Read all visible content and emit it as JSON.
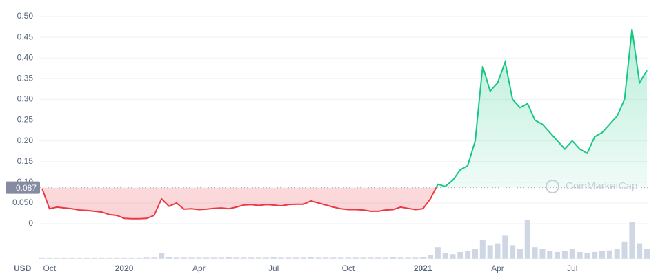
{
  "chart_data": {
    "type": "line",
    "unit": "USD",
    "watermark": "CoinMarketCap",
    "baseline": 0.087,
    "color_above": "#16c784",
    "color_below": "#ea3943",
    "volume_color": "#cfd6e4",
    "grid": true,
    "ylim": [
      0,
      0.5
    ],
    "yticks": [
      0,
      {
        "value": 0.05,
        "label": "0.050"
      },
      {
        "value": 0.1,
        "label": "0.10"
      },
      0.15,
      {
        "value": 0.2,
        "label": "0.20"
      },
      0.25,
      {
        "value": 0.3,
        "label": "0.30"
      },
      0.35,
      {
        "value": 0.4,
        "label": "0.40"
      },
      0.45,
      {
        "value": 0.5,
        "label": "0.50"
      }
    ],
    "categories": [
      null,
      "Oct",
      null,
      null,
      null,
      null,
      null,
      null,
      null,
      null,
      null,
      "2020",
      null,
      null,
      null,
      null,
      null,
      null,
      null,
      null,
      null,
      "Apr",
      null,
      null,
      null,
      null,
      null,
      null,
      null,
      null,
      null,
      "Jul",
      null,
      null,
      null,
      null,
      null,
      null,
      null,
      null,
      null,
      "Oct",
      null,
      null,
      null,
      null,
      null,
      null,
      null,
      null,
      null,
      "2021",
      null,
      null,
      null,
      null,
      null,
      null,
      null,
      null,
      null,
      "Apr",
      null,
      null,
      null,
      null,
      null,
      null,
      null,
      null,
      null,
      "Jul",
      null,
      null,
      null,
      null,
      null,
      null,
      null,
      null,
      null,
      null
    ],
    "values": [
      0.085,
      0.036,
      0.04,
      0.038,
      0.036,
      0.033,
      0.032,
      0.03,
      0.028,
      0.022,
      0.02,
      0.013,
      0.012,
      0.012,
      0.013,
      0.02,
      0.06,
      0.042,
      0.05,
      0.035,
      0.036,
      0.034,
      0.035,
      0.037,
      0.038,
      0.036,
      0.04,
      0.045,
      0.046,
      0.044,
      0.046,
      0.045,
      0.043,
      0.046,
      0.047,
      0.047,
      0.055,
      0.05,
      0.045,
      0.04,
      0.036,
      0.034,
      0.034,
      0.033,
      0.03,
      0.03,
      0.033,
      0.034,
      0.04,
      0.037,
      0.034,
      0.036,
      0.06,
      0.095,
      0.09,
      0.105,
      0.13,
      0.14,
      0.2,
      0.38,
      0.32,
      0.34,
      0.39,
      0.3,
      0.28,
      0.29,
      0.25,
      0.24,
      0.22,
      0.2,
      0.18,
      0.2,
      0.18,
      0.17,
      0.21,
      0.22,
      0.24,
      0.26,
      0.3,
      0.47,
      0.34,
      0.37
    ],
    "volume": [
      2,
      2,
      2,
      2,
      2,
      2,
      2,
      2,
      2,
      2,
      2,
      2,
      2,
      2,
      3,
      3,
      15,
      4,
      3,
      3,
      3,
      3,
      3,
      3,
      3,
      4,
      3,
      3,
      3,
      3,
      3,
      4,
      3,
      3,
      3,
      3,
      4,
      3,
      3,
      3,
      3,
      3,
      3,
      3,
      3,
      3,
      3,
      4,
      3,
      3,
      3,
      4,
      10,
      30,
      15,
      12,
      18,
      20,
      25,
      50,
      35,
      40,
      60,
      35,
      25,
      100,
      30,
      25,
      20,
      18,
      20,
      25,
      18,
      15,
      18,
      20,
      22,
      25,
      45,
      95,
      40,
      25
    ]
  }
}
